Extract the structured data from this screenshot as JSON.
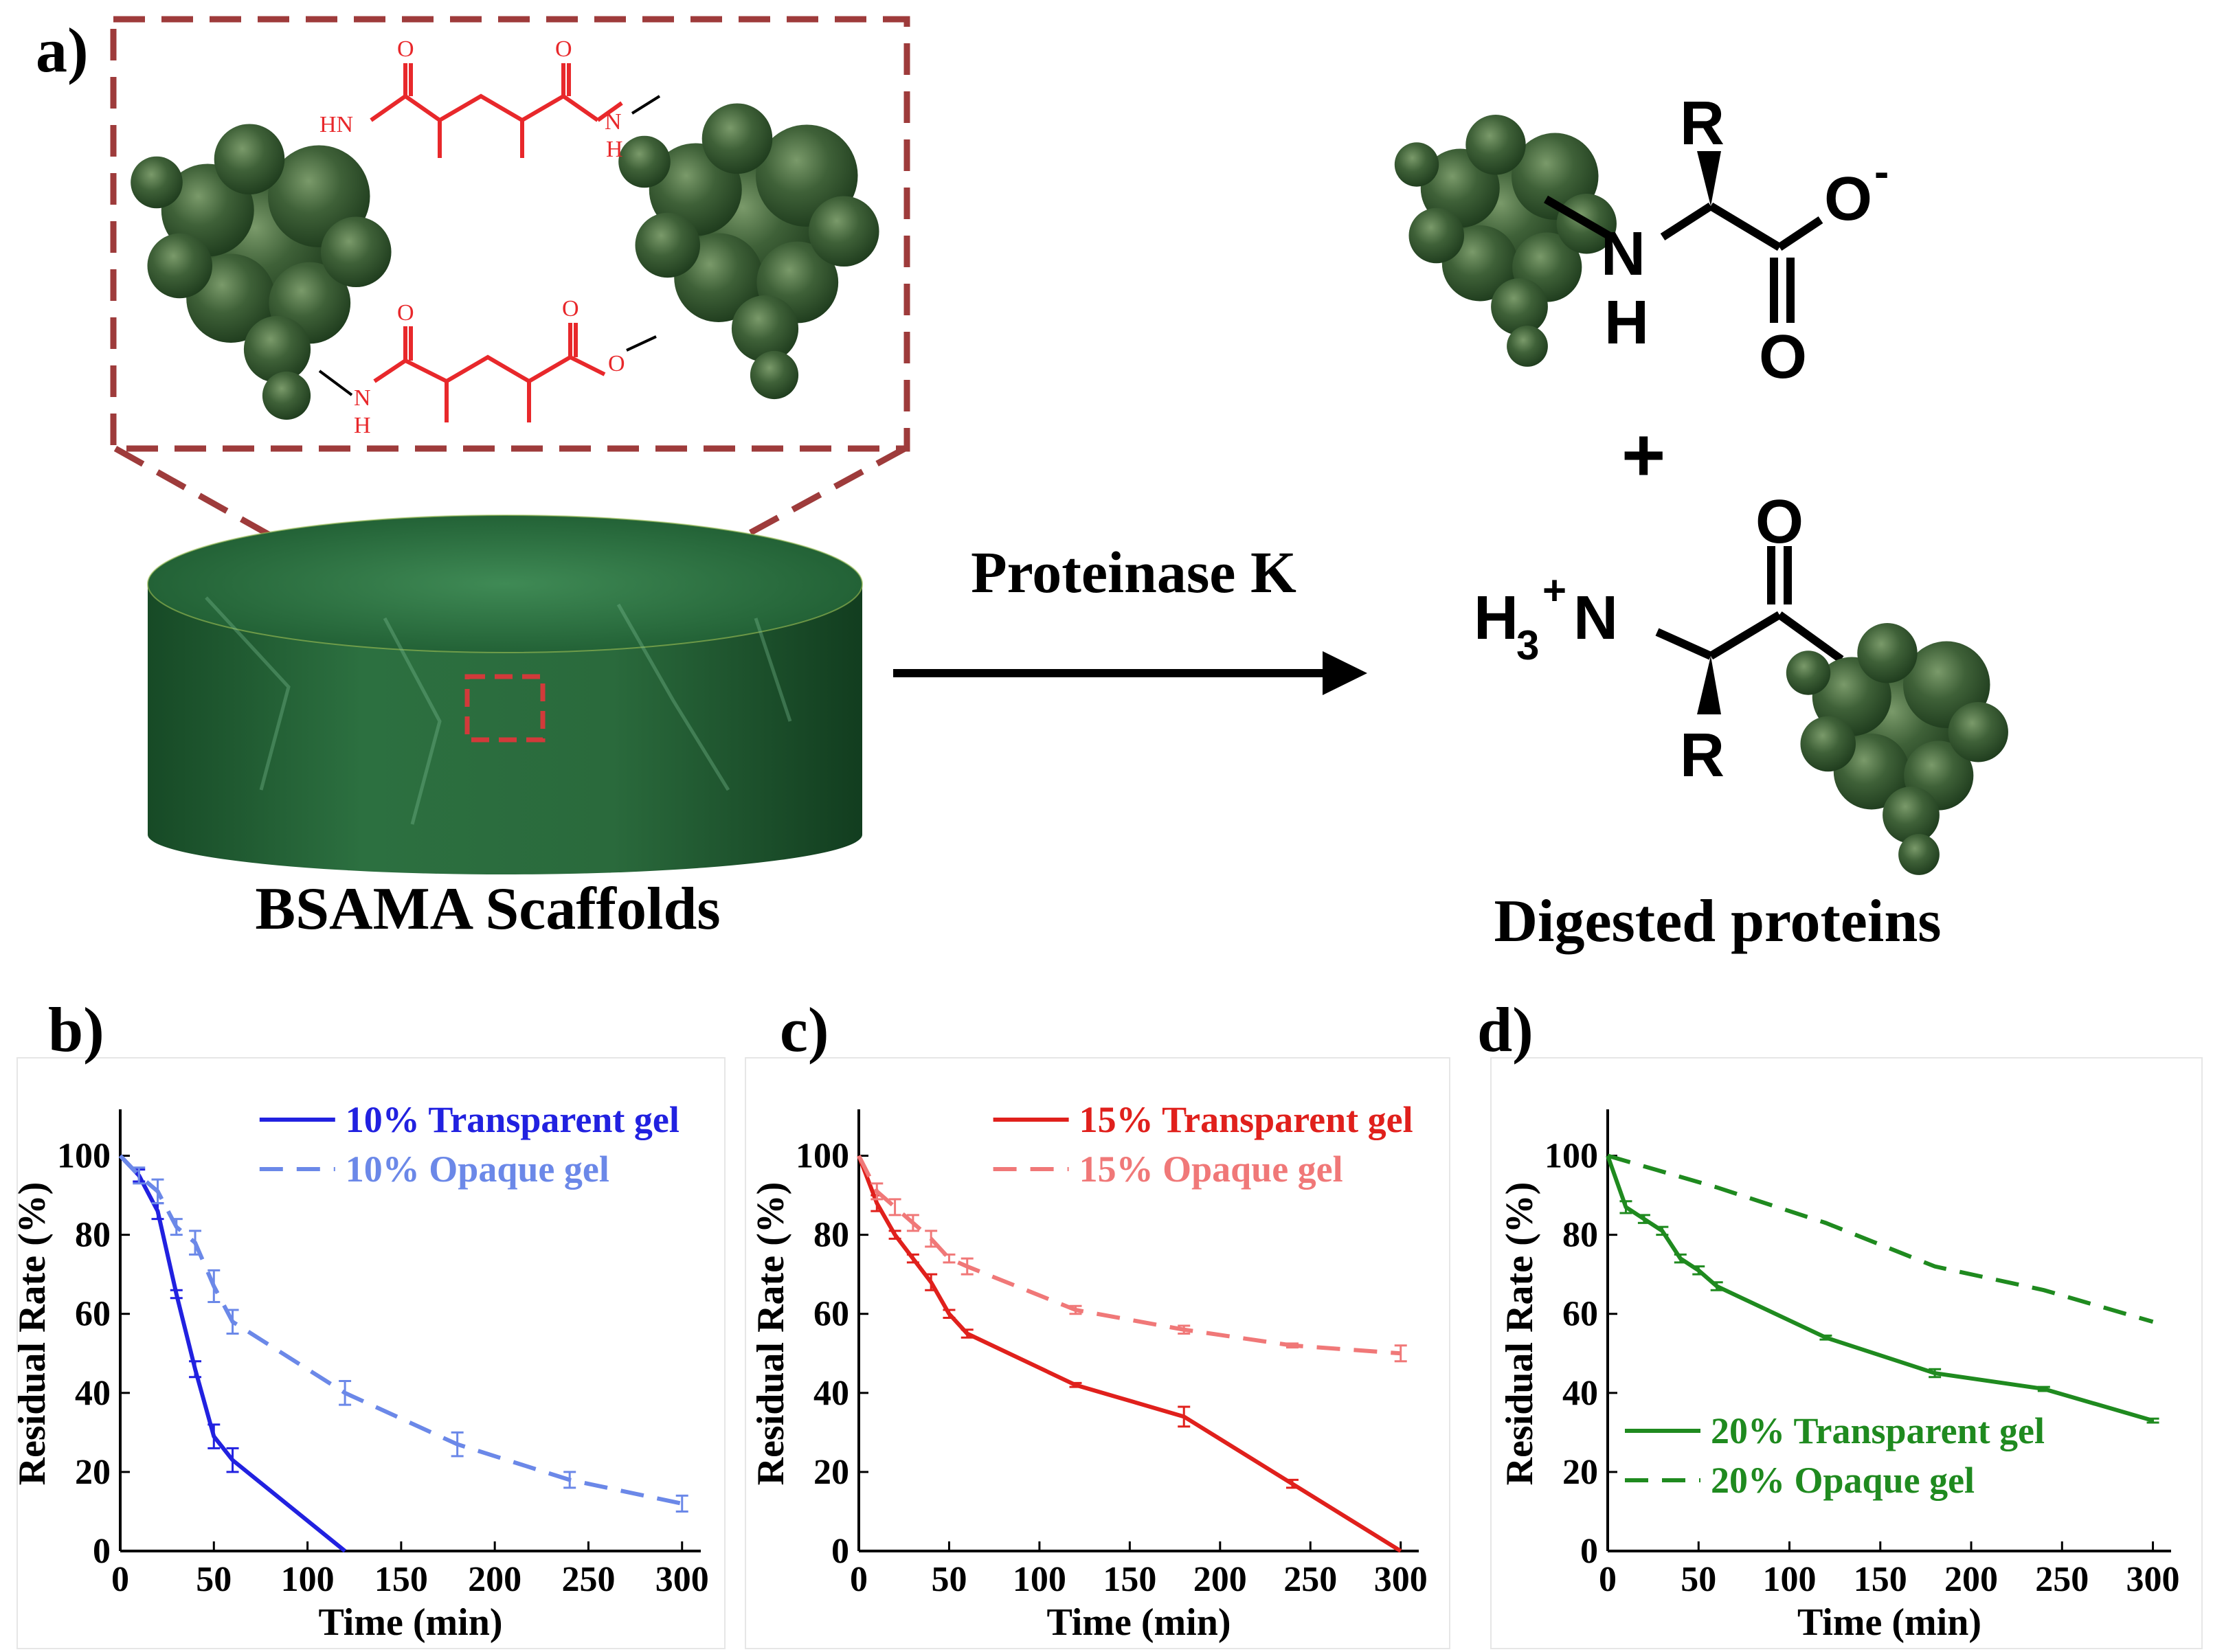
{
  "panel_a": {
    "label": "a)",
    "scaffold_label": "BSAMA Scaffolds",
    "arrow_label": "Proteinase K",
    "product_label": "Digested proteins",
    "crosslink_atoms": {
      "o1": "O",
      "o2": "O",
      "hn_left": "HN",
      "n_right": "N",
      "h_right": "H",
      "o3": "O",
      "o4": "O",
      "n_bottom": "N",
      "h_bottom": "H",
      "o_ester": "O"
    },
    "product1": {
      "r": "R",
      "o_minus": "O",
      "minus": "-",
      "n": "N",
      "h": "H",
      "o": "O"
    },
    "plus": "+",
    "product2": {
      "o": "O",
      "h3": "H",
      "sub3": "3",
      "sup_plus": "+",
      "n": "N",
      "r": "R"
    },
    "colors": {
      "frame": "#9e3b3b",
      "chem_red": "#e8282b",
      "gel": "#1f5a30",
      "protein": "#3b5a32"
    }
  },
  "chart_data": [
    {
      "panel": "b)",
      "type": "line",
      "xlabel": "Time (min)",
      "ylabel": "Residual Rate (%)",
      "xlim": [
        0,
        310
      ],
      "ylim": [
        0,
        110
      ],
      "xticks": [
        0,
        50,
        100,
        150,
        200,
        250,
        300
      ],
      "yticks": [
        0,
        20,
        40,
        60,
        80,
        100
      ],
      "legend_position": "top-right",
      "series": [
        {
          "name": "10% Transparent gel",
          "style": "solid",
          "color": "#2121e0",
          "x": [
            0,
            10,
            20,
            30,
            40,
            50,
            60,
            120
          ],
          "y": [
            100,
            95,
            86,
            65,
            46,
            29,
            23,
            0
          ],
          "err": [
            0,
            1.5,
            2,
            1,
            2,
            3,
            3,
            0
          ]
        },
        {
          "name": "10% Opaque gel",
          "style": "dashed",
          "color": "#6b88e8",
          "x": [
            0,
            10,
            20,
            30,
            40,
            50,
            60,
            120,
            180,
            240,
            300
          ],
          "y": [
            100,
            95,
            91,
            82,
            78,
            67,
            58,
            40,
            27,
            18,
            12
          ],
          "err": [
            0,
            2,
            3,
            2,
            3,
            4,
            3,
            3,
            3,
            2,
            2
          ]
        }
      ]
    },
    {
      "panel": "c)",
      "type": "line",
      "xlabel": "Time (min)",
      "ylabel": "Residual Rate (%)",
      "xlim": [
        0,
        310
      ],
      "ylim": [
        0,
        110
      ],
      "xticks": [
        0,
        50,
        100,
        150,
        200,
        250,
        300
      ],
      "yticks": [
        0,
        20,
        40,
        60,
        80,
        100
      ],
      "legend_position": "top-right",
      "series": [
        {
          "name": "15% Transparent gel",
          "style": "solid",
          "color": "#e0201c",
          "x": [
            0,
            10,
            20,
            30,
            40,
            50,
            60,
            120,
            180,
            240,
            300
          ],
          "y": [
            100,
            88,
            80,
            74,
            68,
            60,
            55,
            42,
            34,
            17,
            0
          ],
          "err": [
            0,
            2,
            1,
            1,
            2,
            1,
            1,
            0.5,
            2.5,
            1,
            0
          ]
        },
        {
          "name": "15% Opaque gel",
          "style": "dashed",
          "color": "#f07878",
          "x": [
            0,
            10,
            20,
            30,
            40,
            50,
            60,
            120,
            180,
            240,
            300
          ],
          "y": [
            100,
            91,
            87,
            83,
            79,
            74,
            72,
            61,
            56,
            52,
            50
          ],
          "err": [
            0,
            2,
            2,
            2,
            2,
            1,
            2,
            1,
            1,
            0.5,
            2
          ]
        }
      ]
    },
    {
      "panel": "d)",
      "type": "line",
      "xlabel": "Time (min)",
      "ylabel": "Residual Rate (%)",
      "xlim": [
        0,
        310
      ],
      "ylim": [
        0,
        110
      ],
      "xticks": [
        0,
        50,
        100,
        150,
        200,
        250,
        300
      ],
      "yticks": [
        0,
        20,
        40,
        60,
        80,
        100
      ],
      "legend_position": "bottom-left",
      "series": [
        {
          "name": "20% Transparent gel",
          "style": "solid",
          "color": "#1f8a1f",
          "x": [
            0,
            10,
            20,
            30,
            40,
            50,
            60,
            120,
            180,
            240,
            300
          ],
          "y": [
            100,
            87,
            84,
            81,
            74,
            71,
            67,
            54,
            45,
            41,
            33
          ],
          "err": [
            0,
            1.5,
            1,
            1,
            1,
            1,
            1,
            0.5,
            1,
            0.5,
            0.5
          ]
        },
        {
          "name": "20% Opaque gel",
          "style": "dashed",
          "color": "#1f8a1f",
          "x": [
            0,
            60,
            120,
            180,
            240,
            300
          ],
          "y": [
            100,
            92,
            83,
            72,
            66,
            58
          ],
          "err": [
            0,
            0,
            0,
            0,
            0,
            0
          ]
        }
      ]
    }
  ]
}
